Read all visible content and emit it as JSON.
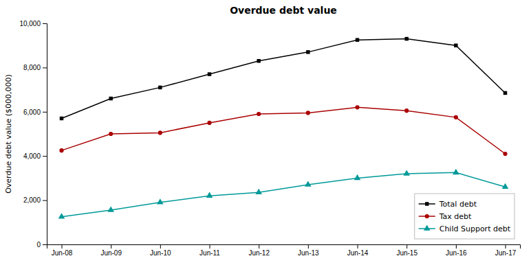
{
  "chart_data": {
    "type": "line",
    "title": "Overdue debt value",
    "ylabel": "Overdue debt value ($000,000)",
    "categories": [
      "Jun-08",
      "Jun-09",
      "Jun-10",
      "Jun-11",
      "Jun-12",
      "Jun-13",
      "Jun-14",
      "Jun-15",
      "Jun-16",
      "Jun-17"
    ],
    "series": [
      {
        "name": "Total debt",
        "color": "#000000",
        "marker": "square",
        "values": [
          5700,
          6600,
          7100,
          7700,
          8300,
          8700,
          9250,
          9300,
          9000,
          6850
        ]
      },
      {
        "name": "Tax debt",
        "color": "#aa0000",
        "marker": "circle",
        "values": [
          4250,
          5000,
          5050,
          5500,
          5900,
          5950,
          6200,
          6050,
          5750,
          4100
        ]
      },
      {
        "name": "Child Support debt",
        "color": "#009999",
        "marker": "triangle",
        "values": [
          1250,
          1550,
          1900,
          2200,
          2350,
          2700,
          3000,
          3200,
          3250,
          2600
        ]
      }
    ],
    "ylim": [
      0,
      10000
    ],
    "yticks": [
      0,
      {
        "value": 2000,
        "label": "2,000"
      },
      {
        "value": 4000,
        "label": "4,000"
      },
      {
        "value": 6000,
        "label": "6,000"
      },
      {
        "value": 8000,
        "label": "8,000"
      },
      {
        "value": 10000,
        "label": "10,000"
      }
    ],
    "grid": false,
    "legend": "lower right"
  }
}
